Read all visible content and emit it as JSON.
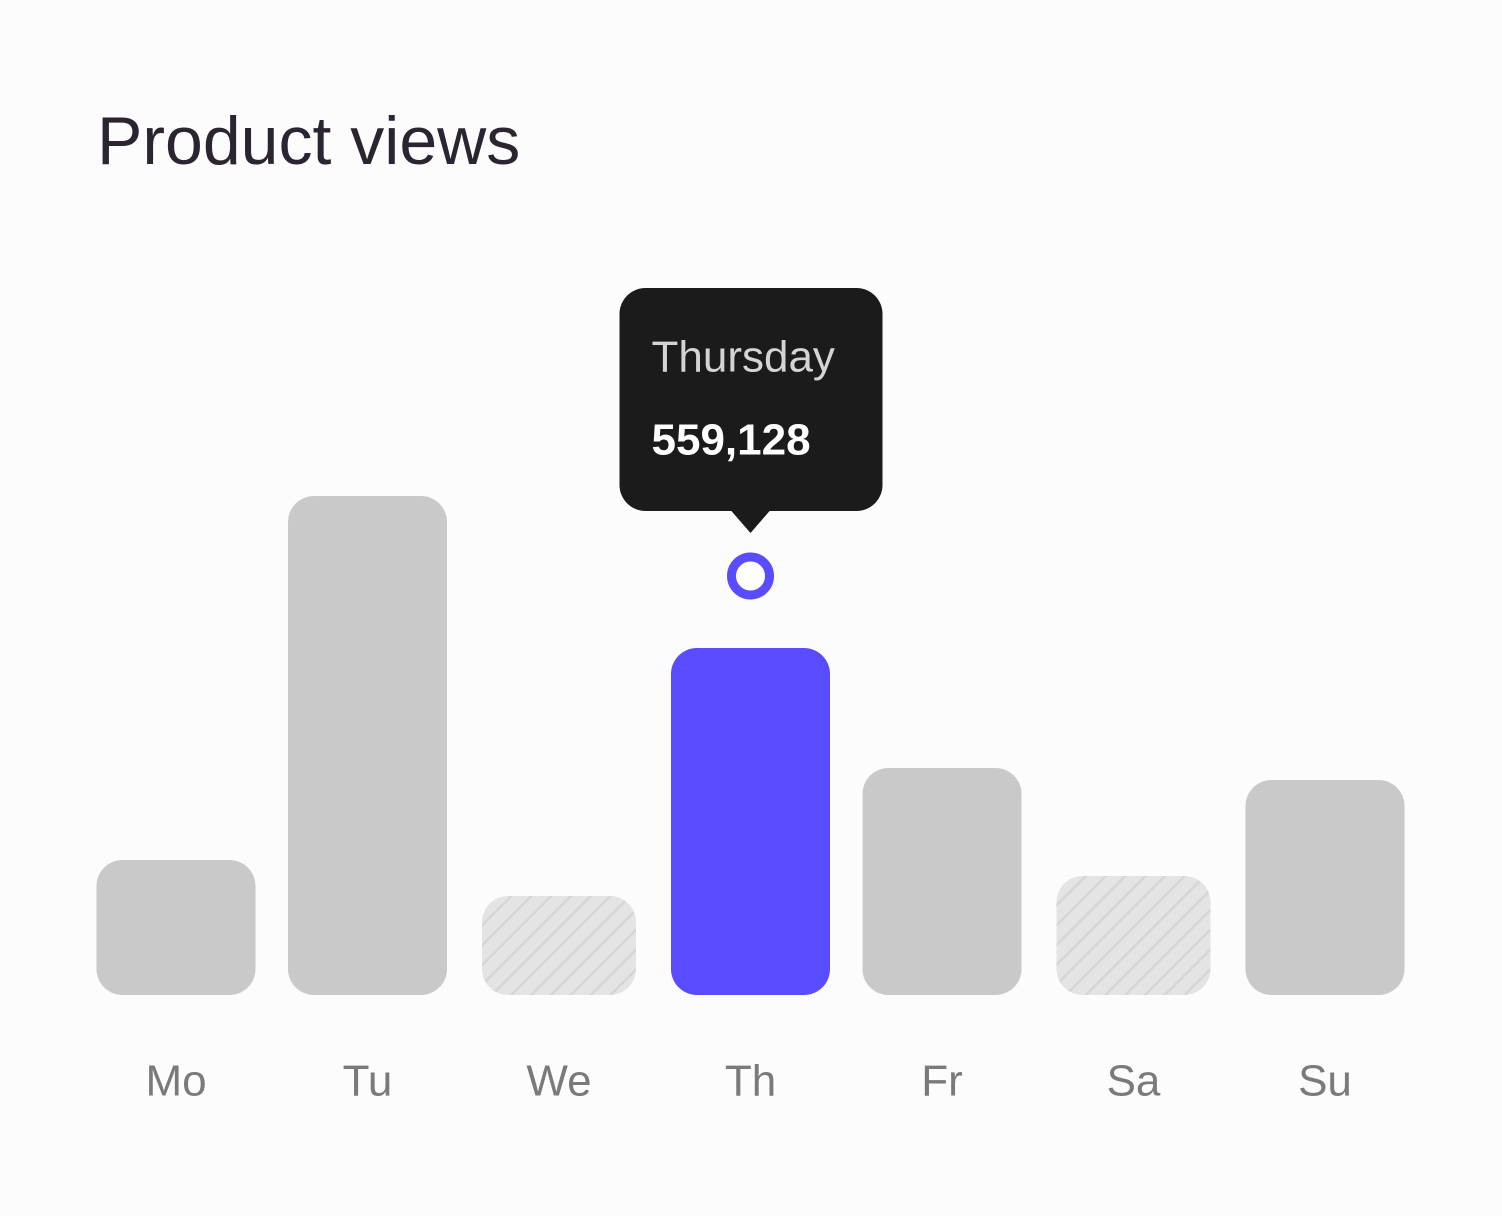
{
  "chart_data": {
    "type": "bar",
    "title": "Product views",
    "categories": [
      "Mo",
      "Tu",
      "We",
      "Th",
      "Fr",
      "Sa",
      "Su"
    ],
    "values": [
      217500,
      804000,
      159500,
      559128,
      365800,
      191700,
      346400
    ],
    "value_labels": [
      null,
      null,
      null,
      "559,128",
      null,
      null,
      null
    ],
    "hatched": [
      false,
      false,
      true,
      false,
      false,
      true,
      false
    ],
    "color": "#c9c9c9",
    "highlight_color": "#584cfe",
    "tooltip": {
      "index": 3,
      "title": "Thursday"
    }
  }
}
